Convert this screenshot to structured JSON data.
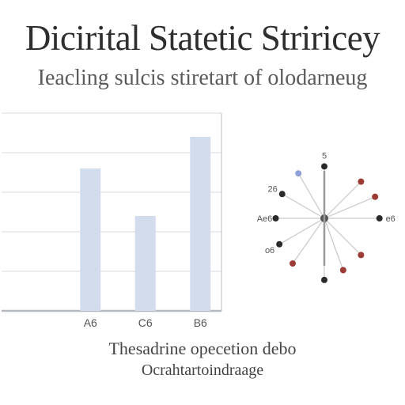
{
  "title": "Dicirital Statetic Striricey",
  "subtitle": "Ieacling sulcis stiretart of olodarneug",
  "caption": {
    "line1": "Thesadrine opecetion debo",
    "line2": "Ocrahtartoindraage"
  },
  "colors": {
    "bar": "#d3dced",
    "grid": "#dde0e6",
    "frame": "#c6c9cf",
    "spoke": "#c8c8c8",
    "dot_red": "#9c3b35",
    "dot_dark": "#2a2a2a",
    "dot_blue": "#8fa0d8"
  },
  "chart_data": [
    {
      "type": "bar",
      "categories": [
        "",
        "A6",
        "C6",
        "B6"
      ],
      "values": [
        0,
        3.6,
        2.4,
        4.4
      ],
      "ylim": [
        0,
        5
      ],
      "grid": true,
      "title": "",
      "xlabel": "",
      "ylabel": ""
    },
    {
      "type": "scatter",
      "subtype": "radial",
      "points": [
        {
          "angle": 0,
          "radius": 0.8,
          "color": "dark",
          "label": "5"
        },
        {
          "angle": 45,
          "radius": 0.8,
          "color": "red",
          "label": ""
        },
        {
          "angle": 67,
          "radius": 0.85,
          "color": "red",
          "label": ""
        },
        {
          "angle": 90,
          "radius": 0.85,
          "color": "dark",
          "label": "e6"
        },
        {
          "angle": 135,
          "radius": 0.8,
          "color": "red",
          "label": ""
        },
        {
          "angle": 160,
          "radius": 0.85,
          "color": "red",
          "label": ""
        },
        {
          "angle": 180,
          "radius": 0.95,
          "color": "dark",
          "label": ""
        },
        {
          "angle": 215,
          "radius": 0.85,
          "color": "red",
          "label": ""
        },
        {
          "angle": 240,
          "radius": 0.8,
          "color": "dark",
          "label": "o6"
        },
        {
          "angle": 270,
          "radius": 0.75,
          "color": "dark",
          "label": "Ae6"
        },
        {
          "angle": 300,
          "radius": 0.75,
          "color": "dark",
          "label": "26"
        },
        {
          "angle": 330,
          "radius": 0.8,
          "color": "blue",
          "label": ""
        }
      ]
    }
  ]
}
